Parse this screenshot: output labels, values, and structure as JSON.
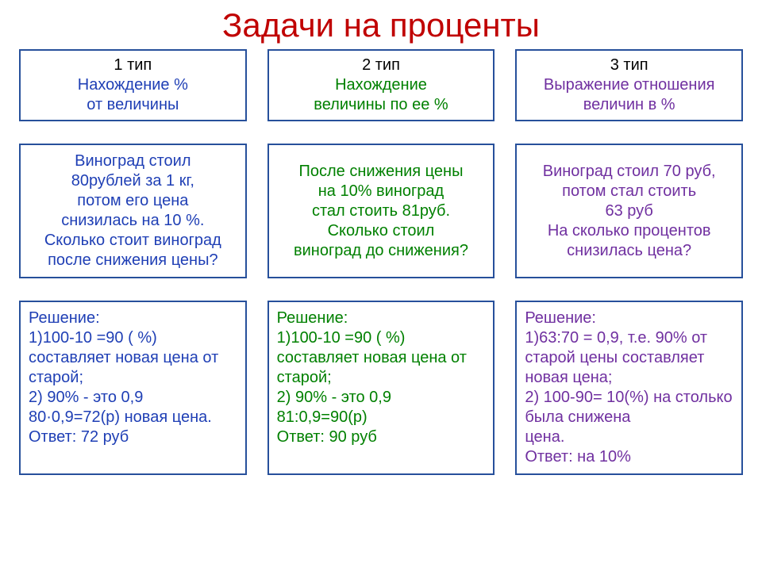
{
  "title": "Задачи на проценты",
  "title_color": "#c00000",
  "border_color": "#27509b",
  "columns": [
    {
      "color": "#1f3fb5",
      "type_label": "1 тип",
      "type_desc": "Нахождение %\nот величины",
      "problem": "Виноград стоил\n80рублей за 1 кг,\nпотом его цена\nснизилась на 10 %.\nСколько стоит виноград\nпосле снижения цены?",
      "solution": "Решение:\n1)100-10 =90 ( %)\nсоставляет новая цена от старой;\n2) 90% - это 0,9\n80·0,9=72(р) новая цена.\nОтвет: 72 руб"
    },
    {
      "color": "#008000",
      "type_label": "2 тип",
      "type_desc": "Нахождение\nвеличины по ее %",
      "problem": "После снижения цены\nна 10% виноград\nстал стоить 81руб.\nСколько стоил\nвиноград до снижения?",
      "solution": "Решение:\n 1)100-10 =90 ( %)\nсоставляет новая цена от старой;\n2) 90% - это 0,9\n81:0,9=90(р)\nОтвет: 90 руб"
    },
    {
      "color": "#7030a0",
      "type_label": "3 тип",
      "type_desc": "Выражение отношения\nвеличин в %",
      "problem": "Виноград стоил 70 руб,\nпотом стал стоить\n63 руб\nНа сколько процентов\nснизилась цена?",
      "solution": "Решение:\n1)63:70 = 0,9, т.е.  90% от старой цены составляет новая цена;\n2) 100-90= 10(%) на столько была снижена\n цена.\nОтвет: на 10%"
    }
  ],
  "styling": {
    "background": "#ffffff",
    "title_fontsize": 42,
    "cell_fontsize": 20,
    "border_width": 2,
    "grid_col_gap": 26,
    "grid_row_gap": 28
  }
}
